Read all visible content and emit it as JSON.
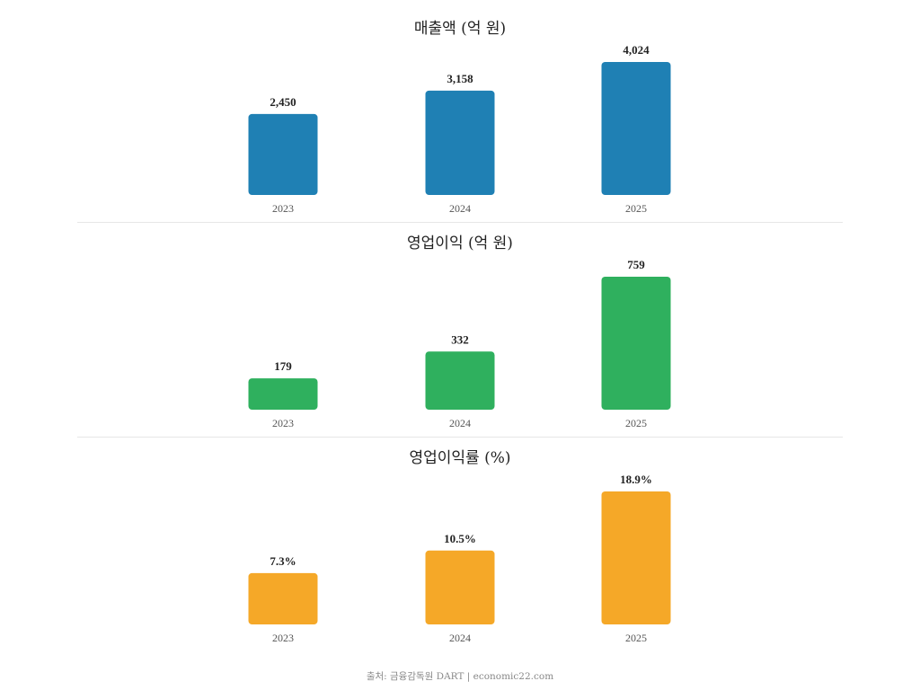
{
  "chart_data": [
    {
      "type": "bar",
      "title": "매출액 (억 원)",
      "categories": [
        "2023",
        "2024",
        "2025"
      ],
      "values": [
        2450,
        3158,
        4024
      ],
      "value_labels": [
        "2,450",
        "3,158",
        "4,024"
      ],
      "color": "#1f80b4"
    },
    {
      "type": "bar",
      "title": "영업이익 (억 원)",
      "categories": [
        "2023",
        "2024",
        "2025"
      ],
      "values": [
        179,
        332,
        759
      ],
      "value_labels": [
        "179",
        "332",
        "759"
      ],
      "color": "#2fb05e"
    },
    {
      "type": "bar",
      "title": "영업이익률 (%)",
      "categories": [
        "2023",
        "2024",
        "2025"
      ],
      "values": [
        7.3,
        10.5,
        18.9
      ],
      "value_labels": [
        "7.3%",
        "10.5%",
        "18.9%"
      ],
      "color": "#f5a828"
    }
  ],
  "footer": "출처: 금융감독원 DART | economic22.com"
}
